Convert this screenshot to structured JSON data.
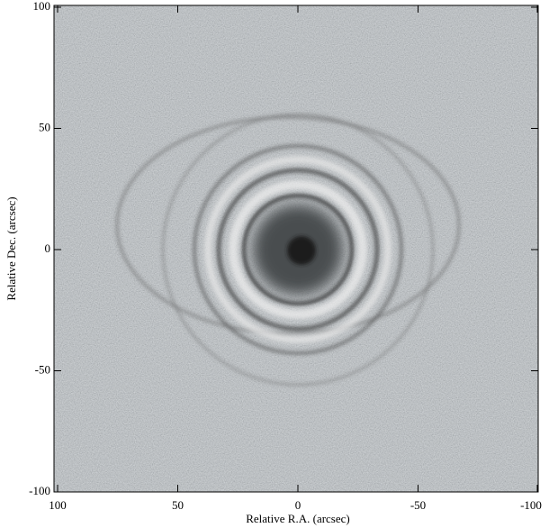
{
  "chart_data": {
    "type": "image",
    "xlabel": "Relative R.A. (arcsec)",
    "ylabel": "Relative Dec. (arcsec)",
    "xlim": [
      100,
      -100
    ],
    "ylim": [
      -100,
      100
    ],
    "xticks": [
      100,
      50,
      0,
      -50,
      -100
    ],
    "yticks": [
      100,
      50,
      0,
      -50,
      -100
    ]
  }
}
